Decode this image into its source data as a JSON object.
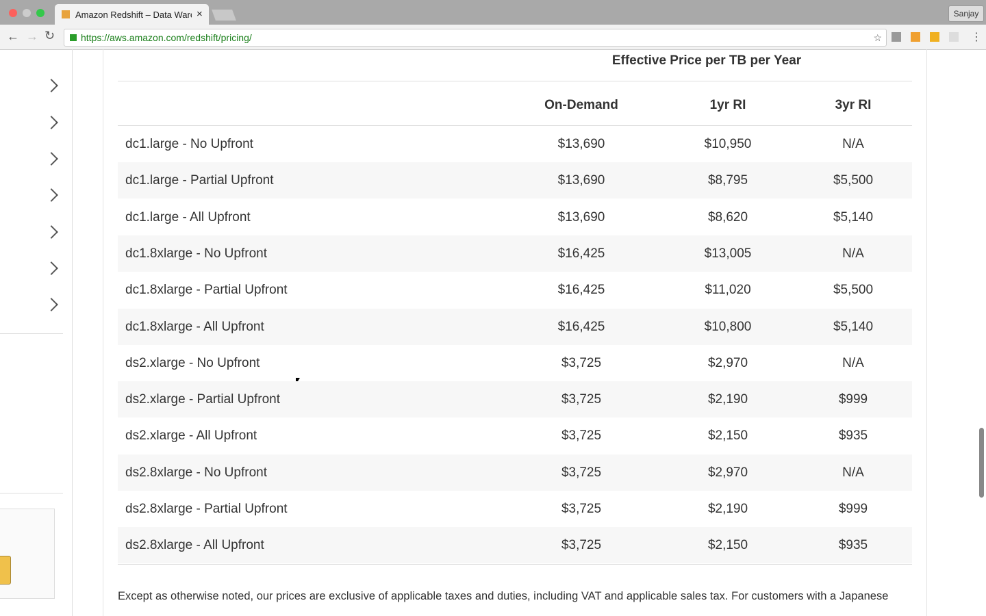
{
  "browser": {
    "tab_title": "Amazon Redshift – Data Ware",
    "url": "https://aws.amazon.com/redshift/pricing/",
    "profile": "Sanjay"
  },
  "table": {
    "caption": "Effective Price per TB per Year",
    "columns": [
      "On-Demand",
      "1yr RI",
      "3yr RI"
    ],
    "rows": [
      [
        "dc1.large - No Upfront",
        "$13,690",
        "$10,950",
        "N/A"
      ],
      [
        "dc1.large - Partial Upfront",
        "$13,690",
        "$8,795",
        "$5,500"
      ],
      [
        "dc1.large - All Upfront",
        "$13,690",
        "$8,620",
        "$5,140"
      ],
      [
        "dc1.8xlarge - No Upfront",
        "$16,425",
        "$13,005",
        "N/A"
      ],
      [
        "dc1.8xlarge - Partial Upfront",
        "$16,425",
        "$11,020",
        "$5,500"
      ],
      [
        "dc1.8xlarge - All Upfront",
        "$16,425",
        "$10,800",
        "$5,140"
      ],
      [
        "ds2.xlarge - No Upfront",
        "$3,725",
        "$2,970",
        "N/A"
      ],
      [
        "ds2.xlarge - Partial Upfront",
        "$3,725",
        "$2,190",
        "$999"
      ],
      [
        "ds2.xlarge - All Upfront",
        "$3,725",
        "$2,150",
        "$935"
      ],
      [
        "ds2.8xlarge - No Upfront",
        "$3,725",
        "$2,970",
        "N/A"
      ],
      [
        "ds2.8xlarge - Partial Upfront",
        "$3,725",
        "$2,190",
        "$999"
      ],
      [
        "ds2.8xlarge - All Upfront",
        "$3,725",
        "$2,150",
        "$935"
      ]
    ]
  },
  "footnote": "Except as otherwise noted, our prices are exclusive of applicable taxes and duties, including VAT and applicable sales tax. For customers with a Japanese"
}
